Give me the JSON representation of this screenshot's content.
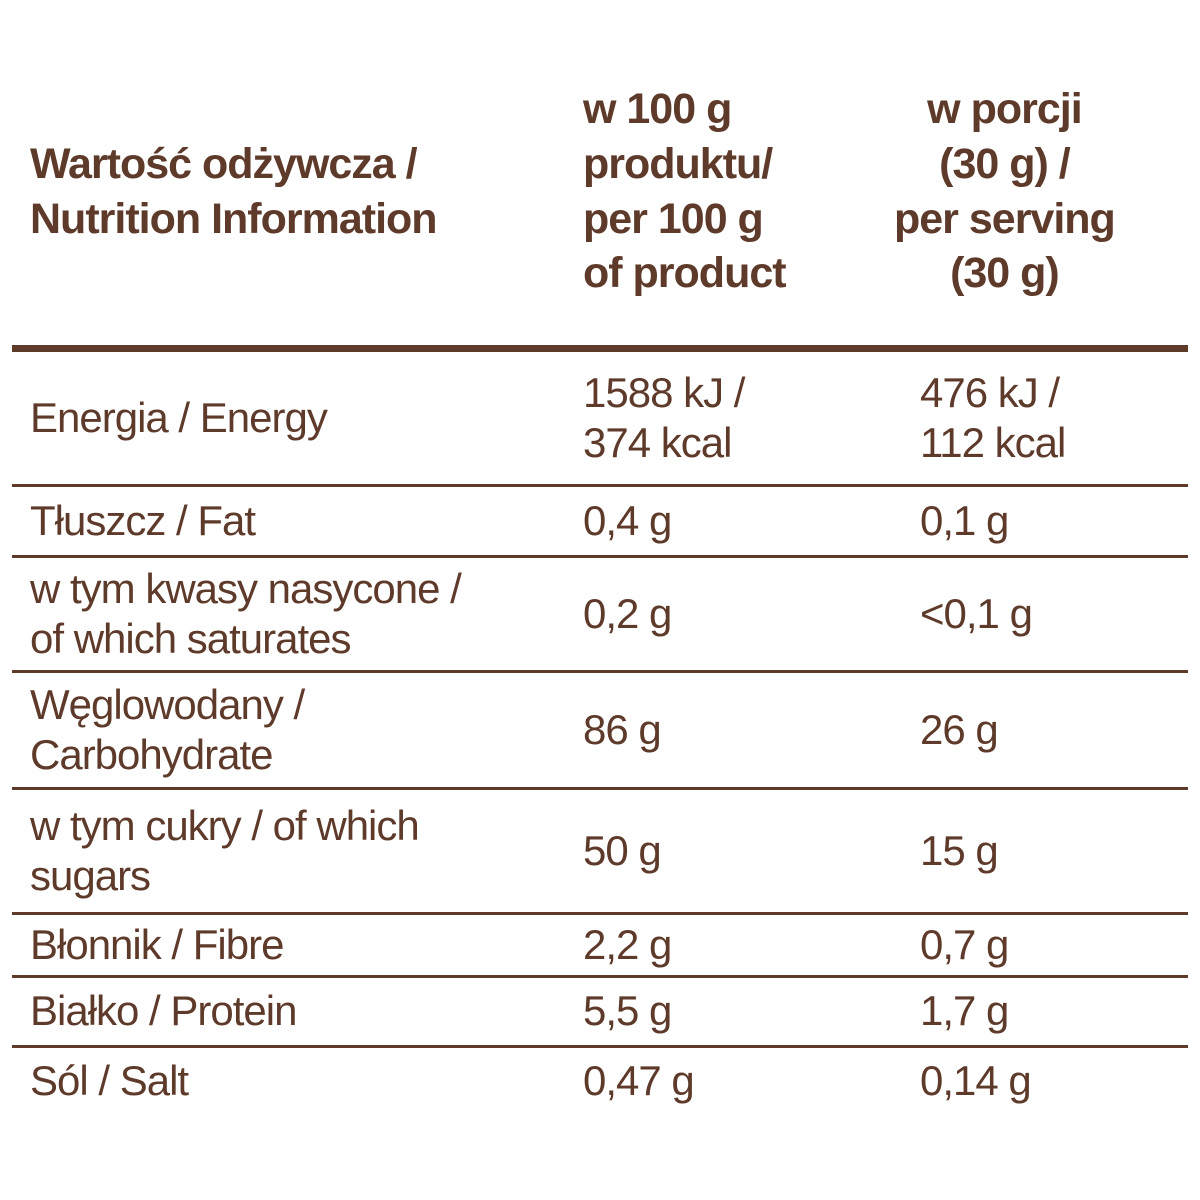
{
  "colors": {
    "text": "#5e3a2a",
    "rule": "#5e3a2a",
    "background": "#ffffff"
  },
  "table": {
    "header": {
      "col1": "Wartość odżywcza /\nNutrition Information",
      "col2": "w 100 g\nproduktu/\nper 100 g\nof product",
      "col3": "w porcji\n(30 g) /\nper serving\n(30 g)"
    },
    "rows": [
      {
        "label": "Energia / Energy",
        "per_100g": "1588 kJ /\n374 kcal",
        "per_serving": "476 kJ /\n112 kcal"
      },
      {
        "label": "Tłuszcz / Fat",
        "per_100g": "0,4 g",
        "per_serving": "0,1 g"
      },
      {
        "label": "w tym kwasy nasycone /\nof which saturates",
        "per_100g": "0,2 g",
        "per_serving": "<0,1 g"
      },
      {
        "label": "Węglowodany /\nCarbohydrate",
        "per_100g": "86 g",
        "per_serving": "26 g"
      },
      {
        "label": "w tym cukry / of which\nsugars",
        "per_100g": "50 g",
        "per_serving": "15 g"
      },
      {
        "label": "Błonnik / Fibre",
        "per_100g": "2,2 g",
        "per_serving": "0,7 g"
      },
      {
        "label": "Białko / Protein",
        "per_100g": "5,5 g",
        "per_serving": "1,7 g"
      },
      {
        "label": "Sól / Salt",
        "per_100g": "0,47 g",
        "per_serving": "0,14 g"
      }
    ]
  }
}
